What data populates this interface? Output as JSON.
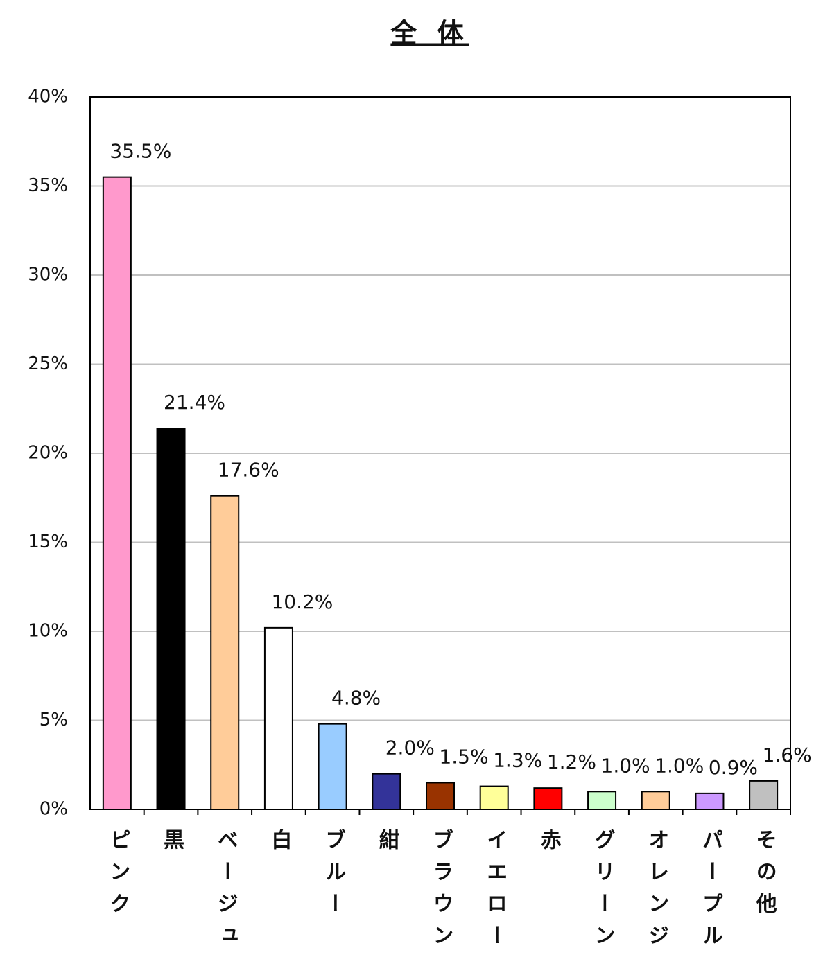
{
  "chart_data": {
    "type": "bar",
    "title": "全 体",
    "categories": [
      "ピンク",
      "黒",
      "ベージュ",
      "白",
      "ブルー",
      "紺",
      "ブラウン",
      "イエロー",
      "赤",
      "グリーン",
      "オレンジ",
      "パープル",
      "その他"
    ],
    "values": [
      35.5,
      21.4,
      17.6,
      10.2,
      4.8,
      2.0,
      1.5,
      1.3,
      1.2,
      1.0,
      1.0,
      0.9,
      1.6
    ],
    "value_labels": [
      "35.5%",
      "21.4%",
      "17.6%",
      "10.2%",
      "4.8%",
      "2.0%",
      "1.5%",
      "1.3%",
      "1.2%",
      "1.0%",
      "1.0%",
      "0.9%",
      "1.6%"
    ],
    "colors": [
      "#ff99cc",
      "#000000",
      "#ffcc99",
      "#ffffff",
      "#99ccff",
      "#333399",
      "#993300",
      "#ffff99",
      "#ff0000",
      "#ccffcc",
      "#ffcc99",
      "#cc99ff",
      "#c0c0c0"
    ],
    "ylim": [
      0,
      40
    ],
    "yticks": [
      {
        "value": 0,
        "label": "0%"
      },
      {
        "value": 5,
        "label": "5%"
      },
      {
        "value": 10,
        "label": "10%"
      },
      {
        "value": 15,
        "label": "15%"
      },
      {
        "value": 20,
        "label": "20%"
      },
      {
        "value": 25,
        "label": "25%"
      },
      {
        "value": 30,
        "label": "30%"
      },
      {
        "value": 35,
        "label": "35%"
      },
      {
        "value": 40,
        "label": "40%"
      }
    ],
    "grid": true
  }
}
